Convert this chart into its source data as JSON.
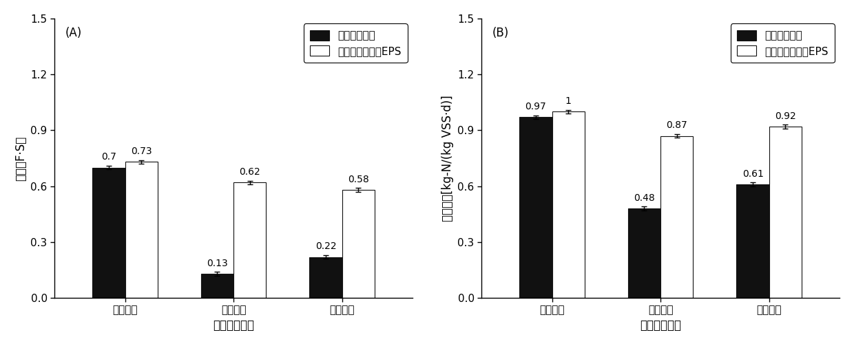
{
  "chart_A": {
    "label": "(A)",
    "categories": [
      "稳定阶段",
      "冲击阶段",
      "恢复阶段"
    ],
    "black_values": [
      0.7,
      0.13,
      0.22
    ],
    "white_values": [
      0.73,
      0.62,
      0.58
    ],
    "black_errors": [
      0.01,
      0.01,
      0.01
    ],
    "white_errors": [
      0.01,
      0.01,
      0.01
    ],
    "ylabel": "强度（F·S）",
    "xlabel": "不同运行阶段",
    "ylim": [
      0,
      1.5
    ],
    "yticks": [
      0.0,
      0.3,
      0.6,
      0.9,
      1.2,
      1.5
    ]
  },
  "chart_B": {
    "label": "(B)",
    "categories": [
      "稳定阶段",
      "冲击阶段",
      "恢复阶段"
    ],
    "black_values": [
      0.97,
      0.48,
      0.61
    ],
    "white_values": [
      1.0,
      0.87,
      0.92
    ],
    "black_errors": [
      0.01,
      0.01,
      0.01
    ],
    "white_errors": [
      0.01,
      0.01,
      0.01
    ],
    "ylabel": "颗粒活性[kg-N/(kg VSS·d)]",
    "xlabel": "不同运行阶段",
    "ylim": [
      0,
      1.5
    ],
    "yticks": [
      0.0,
      0.3,
      0.6,
      0.9,
      1.2,
      1.5
    ]
  },
  "legend_black": "未添加抑制剂",
  "legend_white": "添加强化反础化EPS",
  "bar_width": 0.3,
  "black_color": "#111111",
  "white_color": "#ffffff",
  "edge_color": "#111111",
  "font_size_label": 12,
  "font_size_tick": 11,
  "font_size_annot": 10,
  "font_size_legend": 11,
  "font_size_panel": 12
}
